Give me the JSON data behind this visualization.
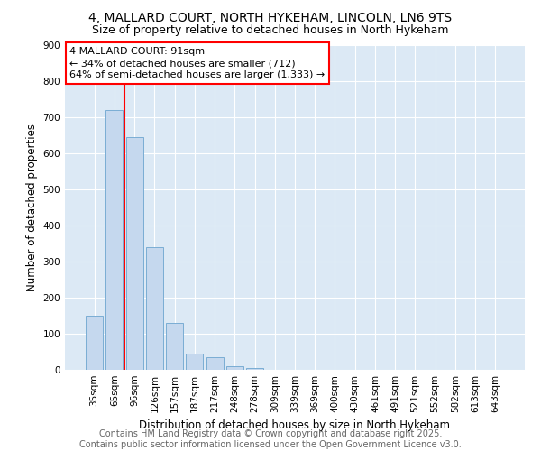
{
  "title1": "4, MALLARD COURT, NORTH HYKEHAM, LINCOLN, LN6 9TS",
  "title2": "Size of property relative to detached houses in North Hykeham",
  "xlabel": "Distribution of detached houses by size in North Hykeham",
  "ylabel": "Number of detached properties",
  "categories": [
    "35sqm",
    "65sqm",
    "96sqm",
    "126sqm",
    "157sqm",
    "187sqm",
    "217sqm",
    "248sqm",
    "278sqm",
    "309sqm",
    "339sqm",
    "369sqm",
    "400sqm",
    "430sqm",
    "461sqm",
    "491sqm",
    "521sqm",
    "552sqm",
    "582sqm",
    "613sqm",
    "643sqm"
  ],
  "values": [
    150,
    720,
    645,
    340,
    130,
    45,
    35,
    10,
    5,
    0,
    0,
    0,
    0,
    0,
    0,
    0,
    0,
    0,
    0,
    0,
    0
  ],
  "bar_color": "#c5d8ee",
  "bar_edge_color": "#7aadd4",
  "bar_width": 0.85,
  "red_line_x": 1.5,
  "annotation_text": "4 MALLARD COURT: 91sqm\n← 34% of detached houses are smaller (712)\n64% of semi-detached houses are larger (1,333) →",
  "ylim": [
    0,
    900
  ],
  "yticks": [
    0,
    100,
    200,
    300,
    400,
    500,
    600,
    700,
    800,
    900
  ],
  "plot_bg_color": "#dce9f5",
  "fig_bg_color": "#ffffff",
  "grid_color": "#ffffff",
  "footer1": "Contains HM Land Registry data © Crown copyright and database right 2025.",
  "footer2": "Contains public sector information licensed under the Open Government Licence v3.0.",
  "title_fontsize": 10,
  "subtitle_fontsize": 9,
  "axis_label_fontsize": 8.5,
  "tick_fontsize": 7.5,
  "annotation_fontsize": 8,
  "footer_fontsize": 7
}
